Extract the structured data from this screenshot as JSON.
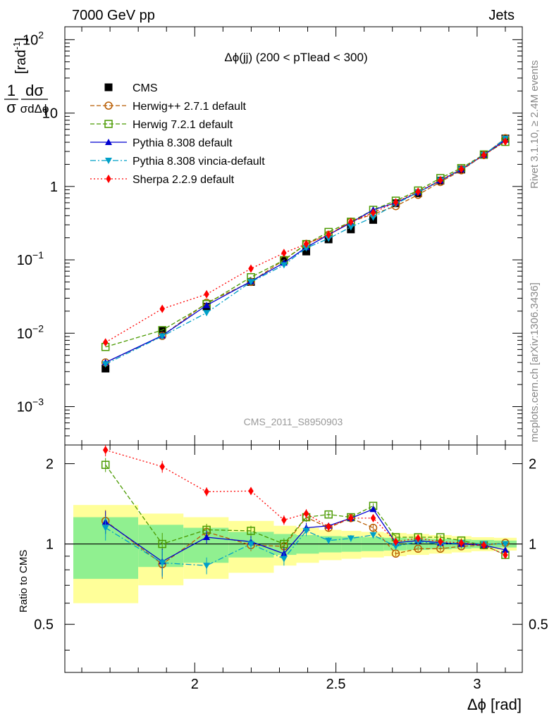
{
  "header": {
    "left": "7000 GeV pp",
    "right": "Jets"
  },
  "side": {
    "rivet": "Rivet 3.1.10, ≥ 2.4M events",
    "mcplots": "mcplots.cern.ch [arXiv:1306.3436]"
  },
  "chart_data": {
    "type": "line",
    "title": "Δϕ(jj) (200 < pTlead <  300)",
    "watermark": "CMS_2011_S8950903",
    "xlabel": "Δϕ [rad]",
    "ylabel": "1/σ dσ/dΔϕ [rad⁻¹]",
    "ylabel_parts": {
      "one": "1",
      "num": "dσ",
      "den": "σdΔϕ",
      "unit": "[rad",
      "unit_sup": "-1",
      "unit_end": "]"
    },
    "ratio_ylabel": "Ratio to CMS",
    "yscale": "log",
    "xlim": [
      1.54,
      3.16
    ],
    "ylim": [
      0.0003,
      150
    ],
    "ratio_ylim": [
      0.33,
      2.35
    ],
    "xticks": [
      {
        "v": 2,
        "label": "2"
      },
      {
        "v": 2.5,
        "label": "2.5"
      },
      {
        "v": 3,
        "label": "3"
      }
    ],
    "yticks": [
      {
        "v": 100,
        "base": "10",
        "exp": "2"
      },
      {
        "v": 10,
        "base": "10",
        "exp": ""
      },
      {
        "v": 1,
        "base": "1",
        "exp": ""
      },
      {
        "v": 0.1,
        "base": "10",
        "exp": "−1"
      },
      {
        "v": 0.01,
        "base": "10",
        "exp": "−2"
      },
      {
        "v": 0.001,
        "base": "10",
        "exp": "−3"
      }
    ],
    "ratio_yticks": [
      {
        "v": 0.5,
        "label": "0.5"
      },
      {
        "v": 1,
        "label": "1"
      },
      {
        "v": 2,
        "label": "2"
      }
    ],
    "x": [
      1.684,
      1.885,
      2.042,
      2.199,
      2.316,
      2.395,
      2.474,
      2.553,
      2.632,
      2.712,
      2.791,
      2.87,
      2.944,
      3.024,
      3.1
    ],
    "bin_edges": [
      1.57,
      1.8,
      1.96,
      2.12,
      2.28,
      2.36,
      2.44,
      2.52,
      2.59,
      2.67,
      2.75,
      2.83,
      2.91,
      2.98,
      3.06,
      3.14
    ],
    "band_inner": [
      0.26,
      0.18,
      0.15,
      0.11,
      0.09,
      0.08,
      0.07,
      0.065,
      0.06,
      0.055,
      0.05,
      0.045,
      0.04,
      0.035,
      0.03
    ],
    "band_outer": [
      0.4,
      0.3,
      0.26,
      0.22,
      0.17,
      0.15,
      0.13,
      0.12,
      0.11,
      0.1,
      0.09,
      0.08,
      0.07,
      0.06,
      0.055
    ],
    "series": [
      {
        "name": "CMS",
        "style": "data",
        "color": "#000000",
        "marker": "square-filled",
        "dash": "",
        "values": [
          0.0033,
          0.011,
          0.023,
          0.05,
          0.098,
          0.13,
          0.19,
          0.26,
          0.35,
          0.59,
          0.81,
          1.2,
          1.7,
          2.7,
          4.5
        ]
      },
      {
        "name": "Herwig++ 2.7.1 default",
        "color": "#b85c00",
        "marker": "circle-open",
        "dash": "6,3",
        "values": [
          0.004,
          0.0092,
          0.026,
          0.05,
          0.1,
          0.165,
          0.22,
          0.33,
          0.42,
          0.54,
          0.77,
          1.15,
          1.66,
          2.68,
          4.55
        ]
      },
      {
        "name": "Herwig 7.2.1 default",
        "color": "#4a9a00",
        "marker": "square-open",
        "dash": "6,3",
        "values": [
          0.0065,
          0.011,
          0.025,
          0.058,
          0.099,
          0.164,
          0.24,
          0.33,
          0.48,
          0.64,
          0.88,
          1.3,
          1.78,
          2.73,
          4.05
        ]
      },
      {
        "name": "Pythia 8.308 default",
        "color": "#0000d0",
        "marker": "triangle-up",
        "dash": "",
        "values": [
          0.004,
          0.0093,
          0.024,
          0.051,
          0.091,
          0.148,
          0.22,
          0.32,
          0.48,
          0.6,
          0.83,
          1.2,
          1.7,
          2.69,
          4.3
        ]
      },
      {
        "name": "Pythia 8.308 vincia-default",
        "color": "#00a0c8",
        "marker": "triangle-down",
        "dash": "8,3,2,3",
        "values": [
          0.0038,
          0.0091,
          0.019,
          0.05,
          0.085,
          0.145,
          0.195,
          0.28,
          0.38,
          0.58,
          0.83,
          1.22,
          1.72,
          2.7,
          4.5
        ]
      },
      {
        "name": "Sherpa 2.2.9 default",
        "color": "#ff0000",
        "marker": "diamond",
        "dash": "2,3",
        "values": [
          0.0075,
          0.0215,
          0.034,
          0.076,
          0.124,
          0.165,
          0.22,
          0.33,
          0.44,
          0.61,
          0.85,
          1.22,
          1.72,
          2.68,
          4.1
        ]
      }
    ],
    "ratio_series": [
      {
        "name": "Herwig++ 2.7.1 default",
        "values": [
          1.22,
          0.84,
          1.11,
          0.99,
          0.98,
          1.26,
          1.15,
          1.25,
          1.15,
          0.92,
          0.96,
          0.96,
          0.98,
          0.99,
          1.01
        ]
      },
      {
        "name": "Herwig 7.2.1 default",
        "values": [
          1.98,
          1.0,
          1.13,
          1.12,
          1.0,
          1.26,
          1.29,
          1.26,
          1.39,
          1.06,
          1.06,
          1.06,
          1.03,
          0.99,
          0.91
        ]
      },
      {
        "name": "Pythia 8.308 default",
        "values": [
          1.21,
          0.86,
          1.06,
          1.02,
          0.92,
          1.15,
          1.17,
          1.25,
          1.35,
          1.01,
          1.03,
          1.01,
          1.0,
          0.99,
          0.95
        ]
      },
      {
        "name": "Pythia 8.308 vincia-default",
        "values": [
          1.15,
          0.85,
          0.83,
          1.0,
          0.88,
          1.12,
          1.03,
          1.05,
          1.08,
          0.98,
          1.02,
          1.0,
          1.01,
          1.0,
          1.0
        ]
      },
      {
        "name": "Sherpa 2.2.9 default",
        "values": [
          2.25,
          1.95,
          1.57,
          1.58,
          1.23,
          1.3,
          1.16,
          1.25,
          1.25,
          1.02,
          1.05,
          1.02,
          1.01,
          0.99,
          0.91
        ]
      }
    ],
    "ratio_errors": [
      0.12,
      0.1,
      0.06,
      0.05,
      0.05,
      0.05,
      0.03,
      0.03,
      0.03,
      0.02,
      0.02,
      0.02,
      0.02,
      0.01,
      0.01
    ],
    "colors": {
      "band_inner": "#90f090",
      "band_outer": "#ffff99"
    }
  }
}
